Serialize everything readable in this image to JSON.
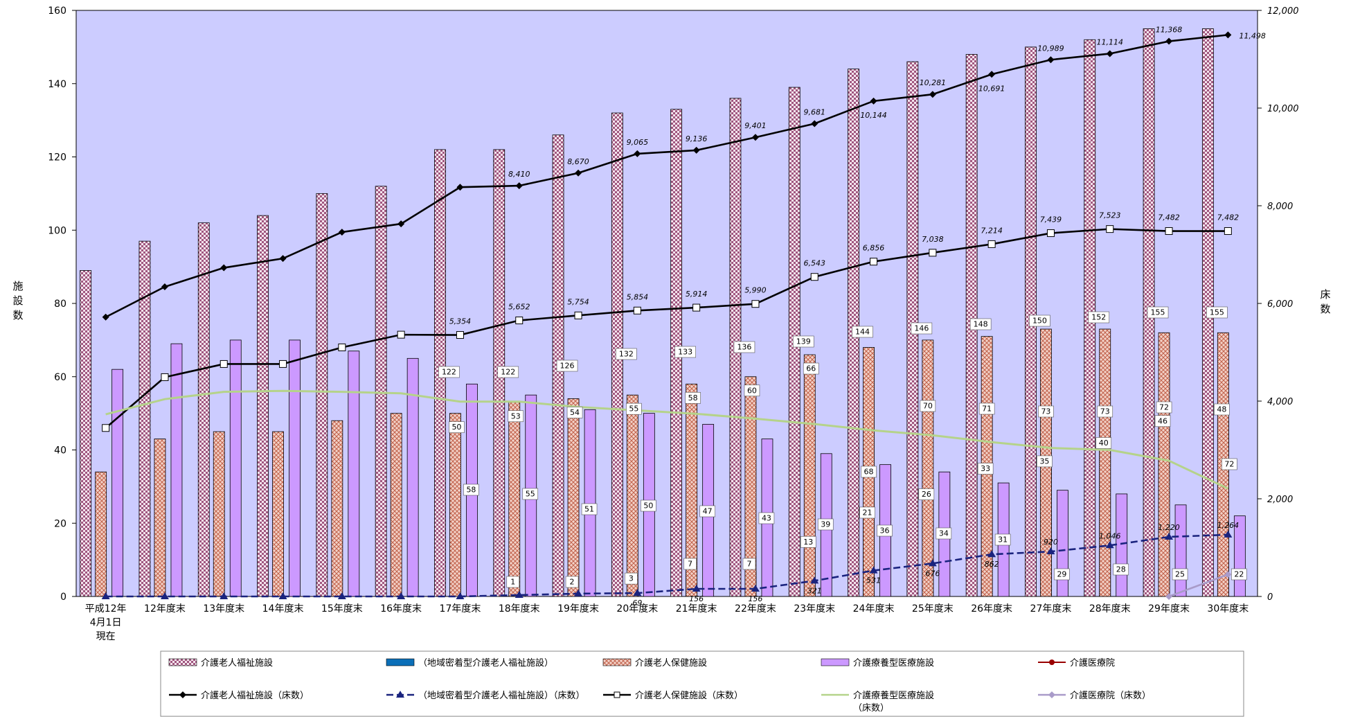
{
  "chart_data": {
    "type": "bar",
    "categories": [
      "平成12年|4月1日|現在",
      "12年度末",
      "13年度末",
      "14年度末",
      "15年度末",
      "16年度末",
      "17年度末",
      "18年度末",
      "19年度末",
      "20年度末",
      "21年度末",
      "22年度末",
      "23年度末",
      "24年度末",
      "25年度末",
      "26年度末",
      "27年度末",
      "28年度末",
      "29年度末",
      "30年度末"
    ],
    "y_left": {
      "label": "施設数",
      "min": 0,
      "max": 160,
      "step": 20
    },
    "y_right": {
      "label": "床数",
      "min": 0,
      "max": 12000,
      "step": 2000
    },
    "grid": false,
    "legend_position": "bottom",
    "bar_series": [
      {
        "name": "介護老人福祉施設",
        "color": "#c9a6bd",
        "pattern": "check",
        "values": [
          89,
          97,
          102,
          104,
          110,
          112,
          122,
          122,
          126,
          132,
          133,
          136,
          139,
          144,
          146,
          148,
          150,
          152,
          155,
          155
        ],
        "labels": [
          "",
          "",
          "",
          "",
          "",
          "",
          "122",
          "122",
          "126",
          "132",
          "133",
          "136",
          "139",
          "144",
          "146",
          "148",
          "150",
          "152",
          "155",
          "155"
        ]
      },
      {
        "name": "（地域密着型介護老人福祉施設）",
        "color": "#0b6fb8",
        "pattern": "solid",
        "values": [
          0,
          0,
          0,
          0,
          0,
          0,
          0,
          1,
          2,
          3,
          7,
          7,
          13,
          21,
          26,
          33,
          35,
          40,
          46,
          48
        ],
        "labels": [
          "",
          "",
          "",
          "",
          "",
          "",
          "",
          "1",
          "2",
          "3",
          "7",
          "7",
          "13",
          "21",
          "26",
          "33",
          "35",
          "40",
          "46",
          "48"
        ]
      },
      {
        "name": "介護老人保健施設",
        "color": "#e8a898",
        "pattern": "cross",
        "values": [
          34,
          43,
          45,
          45,
          48,
          50,
          50,
          53,
          54,
          55,
          58,
          60,
          66,
          68,
          70,
          71,
          73,
          73,
          72,
          72
        ],
        "labels": [
          "",
          "",
          "",
          "",
          "",
          "",
          "50",
          "53",
          "54",
          "55",
          "58",
          "60",
          "66",
          "68",
          "70",
          "71",
          "73",
          "73",
          "72",
          "72"
        ]
      },
      {
        "name": "介護療養型医療施設",
        "color": "#cc99ff",
        "pattern": "solid",
        "values": [
          62,
          69,
          70,
          70,
          67,
          65,
          58,
          55,
          51,
          50,
          47,
          43,
          39,
          36,
          34,
          31,
          29,
          28,
          25,
          22
        ],
        "labels": [
          "",
          "",
          "",
          "",
          "",
          "",
          "58",
          "55",
          "51",
          "50",
          "47",
          "43",
          "39",
          "36",
          "34",
          "31",
          "29",
          "28",
          "25",
          "22"
        ]
      },
      {
        "name": "介護医療院",
        "color": "#990000",
        "pattern": "solid",
        "values": [
          0,
          0,
          0,
          0,
          0,
          0,
          0,
          0,
          0,
          0,
          0,
          0,
          0,
          0,
          0,
          0,
          0,
          0,
          0,
          0
        ],
        "labels": [
          "",
          "",
          "",
          "",
          "",
          "",
          "",
          "",
          "",
          "",
          "",
          "",
          "",
          "",
          "",
          "",
          "",
          "",
          "",
          ""
        ]
      }
    ],
    "line_series": [
      {
        "name": "介護老人福祉施設（床数）",
        "color": "#000000",
        "marker": "diamond",
        "dash": "",
        "values": [
          5720,
          6340,
          6730,
          6920,
          7460,
          7630,
          8380,
          8410,
          8670,
          9065,
          9136,
          9401,
          9681,
          10144,
          10281,
          10691,
          10989,
          11114,
          11368,
          11498
        ],
        "labels": [
          "",
          "",
          "",
          "",
          "",
          "",
          "",
          "8,410",
          "8,670",
          "9,065",
          "9,136",
          "9,401",
          "9,681",
          "10,144",
          "10,281",
          "10,691",
          "10,989",
          "11,114",
          "11,368",
          "11,498"
        ]
      },
      {
        "name": "（地域密着型介護老人福祉施設）（床数）",
        "color": "#1a237e",
        "marker": "triangle",
        "dash": "10,5",
        "values": [
          0,
          0,
          0,
          0,
          0,
          0,
          0,
          29,
          58,
          69,
          156,
          156,
          321,
          531,
          676,
          862,
          920,
          1046,
          1220,
          1264
        ],
        "labels": [
          "",
          "",
          "",
          "",
          "",
          "",
          "",
          "",
          "",
          "69",
          "156",
          "156",
          "321",
          "531",
          "676",
          "862",
          "920",
          "1,046",
          "1,220",
          "1,264"
        ]
      },
      {
        "name": "介護老人保健施設（床数）",
        "color": "#000000",
        "marker": "square",
        "dash": "",
        "values": [
          3450,
          4490,
          4760,
          4760,
          5100,
          5360,
          5354,
          5652,
          5754,
          5854,
          5914,
          5990,
          6543,
          6856,
          7038,
          7214,
          7439,
          7523,
          7482,
          7482
        ],
        "labels": [
          "",
          "",
          "",
          "",
          "",
          "",
          "5,354",
          "5,652",
          "5,754",
          "5,854",
          "5,914",
          "5,990",
          "6,543",
          "6,856",
          "7,038",
          "7,214",
          "7,439",
          "7,523",
          "7,482",
          "7,482"
        ]
      },
      {
        "name": "介護療養型医療施設（床数）",
        "color": "#b5d38a",
        "marker": "none",
        "dash": "",
        "values": [
          3730,
          4040,
          4190,
          4210,
          4190,
          4160,
          3990,
          3990,
          3880,
          3810,
          3740,
          3640,
          3530,
          3400,
          3300,
          3160,
          3040,
          3000,
          2780,
          2210
        ],
        "labels": [
          "",
          "",
          "",
          "",
          "",
          "",
          "",
          "",
          "",
          "",
          "",
          "",
          "",
          "",
          "",
          "",
          "",
          "",
          "",
          ""
        ]
      },
      {
        "name": "介護医療院（床数）",
        "color": "#a99bc9",
        "marker": "diamond",
        "dash": "",
        "values": [
          null,
          null,
          null,
          null,
          null,
          null,
          null,
          null,
          null,
          null,
          null,
          null,
          null,
          null,
          null,
          null,
          null,
          null,
          0,
          450
        ],
        "labels": [
          "",
          "",
          "",
          "",
          "",
          "",
          "",
          "",
          "",
          "",
          "",
          "",
          "",
          "",
          "",
          "",
          "",
          "",
          "",
          ""
        ]
      }
    ]
  }
}
